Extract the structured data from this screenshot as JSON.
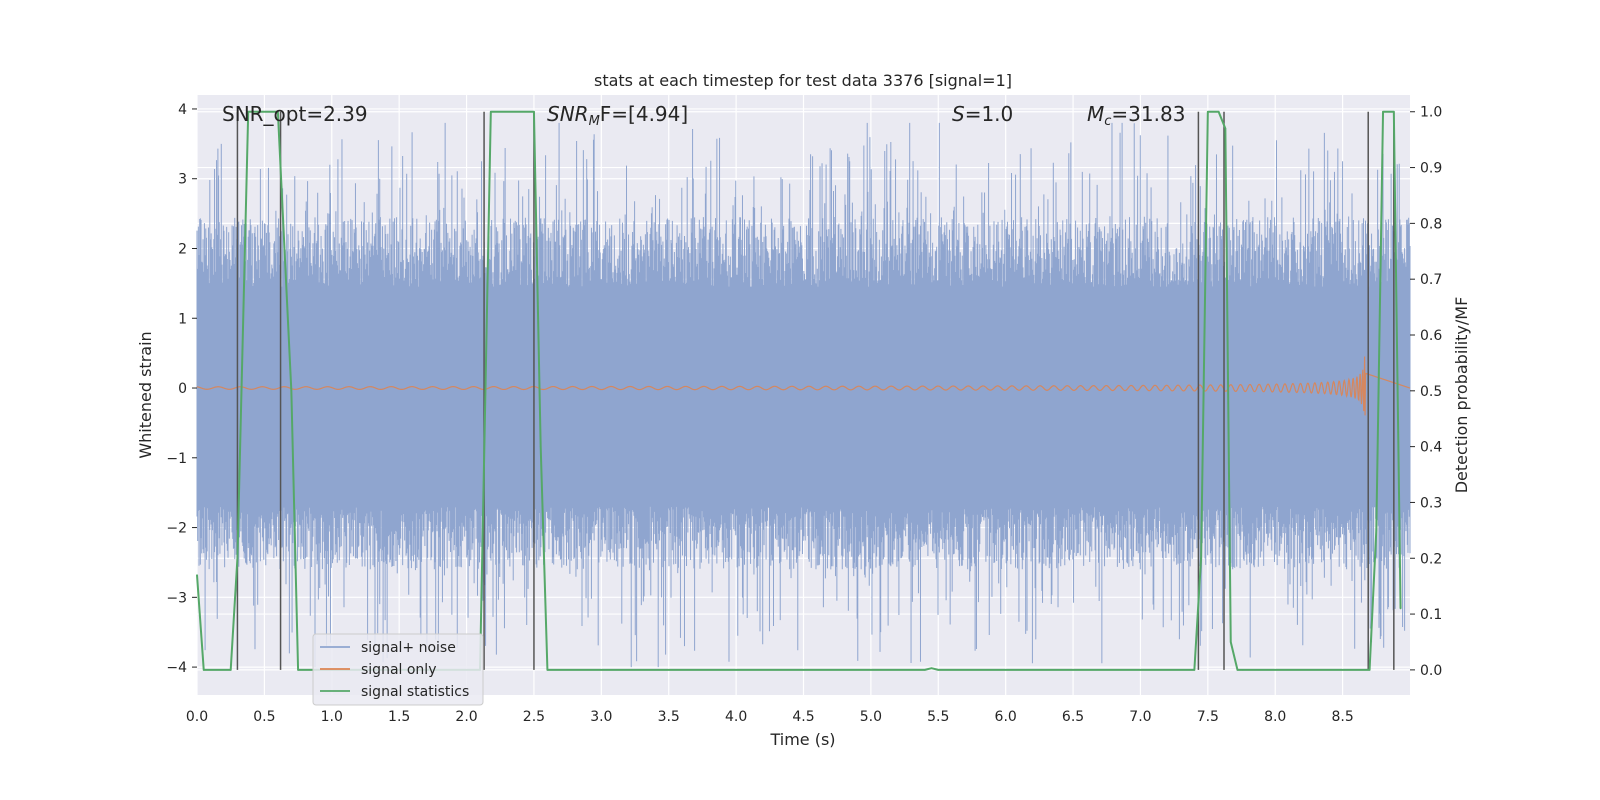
{
  "chart_data": {
    "type": "line",
    "title": "stats at each timestep for test data 3376 [signal=1]",
    "xlabel": "Time (s)",
    "ylabel_left": "Whitened strain",
    "ylabel_right": "Detection probability/MF",
    "xlim": [
      0.0,
      9.0
    ],
    "ylim_left": [
      -4.4,
      4.2
    ],
    "ylim_right": [
      -0.045,
      1.03
    ],
    "x_ticks": [
      "0.0",
      "0.5",
      "1.0",
      "1.5",
      "2.0",
      "2.5",
      "3.0",
      "3.5",
      "4.0",
      "4.5",
      "5.0",
      "5.5",
      "6.0",
      "6.5",
      "7.0",
      "7.5",
      "8.0",
      "8.5"
    ],
    "y_ticks_left": [
      "4",
      "3",
      "2",
      "1",
      "0",
      "−1",
      "−2",
      "−3",
      "−4"
    ],
    "y_ticks_right": [
      "1.0",
      "0.9",
      "0.8",
      "0.7",
      "0.6",
      "0.5",
      "0.4",
      "0.3",
      "0.2",
      "0.1",
      "0.0"
    ],
    "grid": true,
    "legend_position": "lower-left",
    "annotations": {
      "snr_opt": "SNR_opt=2.39",
      "snr_mf_label": "SNR",
      "snr_mf_sub": "M",
      "snr_mf_tail": "F=[4.94]",
      "s_label": "S",
      "s_tail": "=1.0",
      "mc_label": "M",
      "mc_sub": "c",
      "mc_tail": "=31.83"
    },
    "series": [
      {
        "name": "signal+ noise",
        "color": "#8fa5cf",
        "typical_range": [
          -1.7,
          1.45
        ],
        "peak_range": [
          -4.0,
          3.8
        ]
      },
      {
        "name": "signal only",
        "color": "#dd8452",
        "chirp_peak_time": 8.67,
        "chirp_peak_amplitude": 0.65
      },
      {
        "name": "signal statistics",
        "color": "#55a868",
        "x": [
          0.0,
          0.05,
          0.25,
          0.3,
          0.38,
          0.6,
          0.7,
          0.75,
          2.1,
          2.18,
          2.5,
          2.55,
          2.6,
          5.4,
          5.45,
          5.5,
          7.4,
          7.45,
          7.5,
          7.58,
          7.63,
          7.67,
          7.72,
          7.76,
          8.7,
          8.75,
          8.8,
          8.88,
          8.93
        ],
        "y": [
          0.17,
          0.0,
          0.0,
          0.2,
          1.0,
          1.0,
          0.5,
          0.0,
          0.0,
          1.0,
          1.0,
          0.4,
          0.0,
          0.0,
          0.003,
          0.0,
          0.0,
          0.2,
          1.0,
          1.0,
          0.97,
          0.05,
          0.0,
          0.0,
          0.0,
          0.25,
          1.0,
          1.0,
          0.11
        ]
      },
      {
        "name": "",
        "color": "#555555",
        "kind": "vertical-markers",
        "x": [
          0.3,
          0.62,
          2.13,
          2.5,
          7.43,
          7.62,
          8.69,
          8.88
        ],
        "y_bottom": 0.0,
        "y_top": 1.0
      }
    ]
  }
}
